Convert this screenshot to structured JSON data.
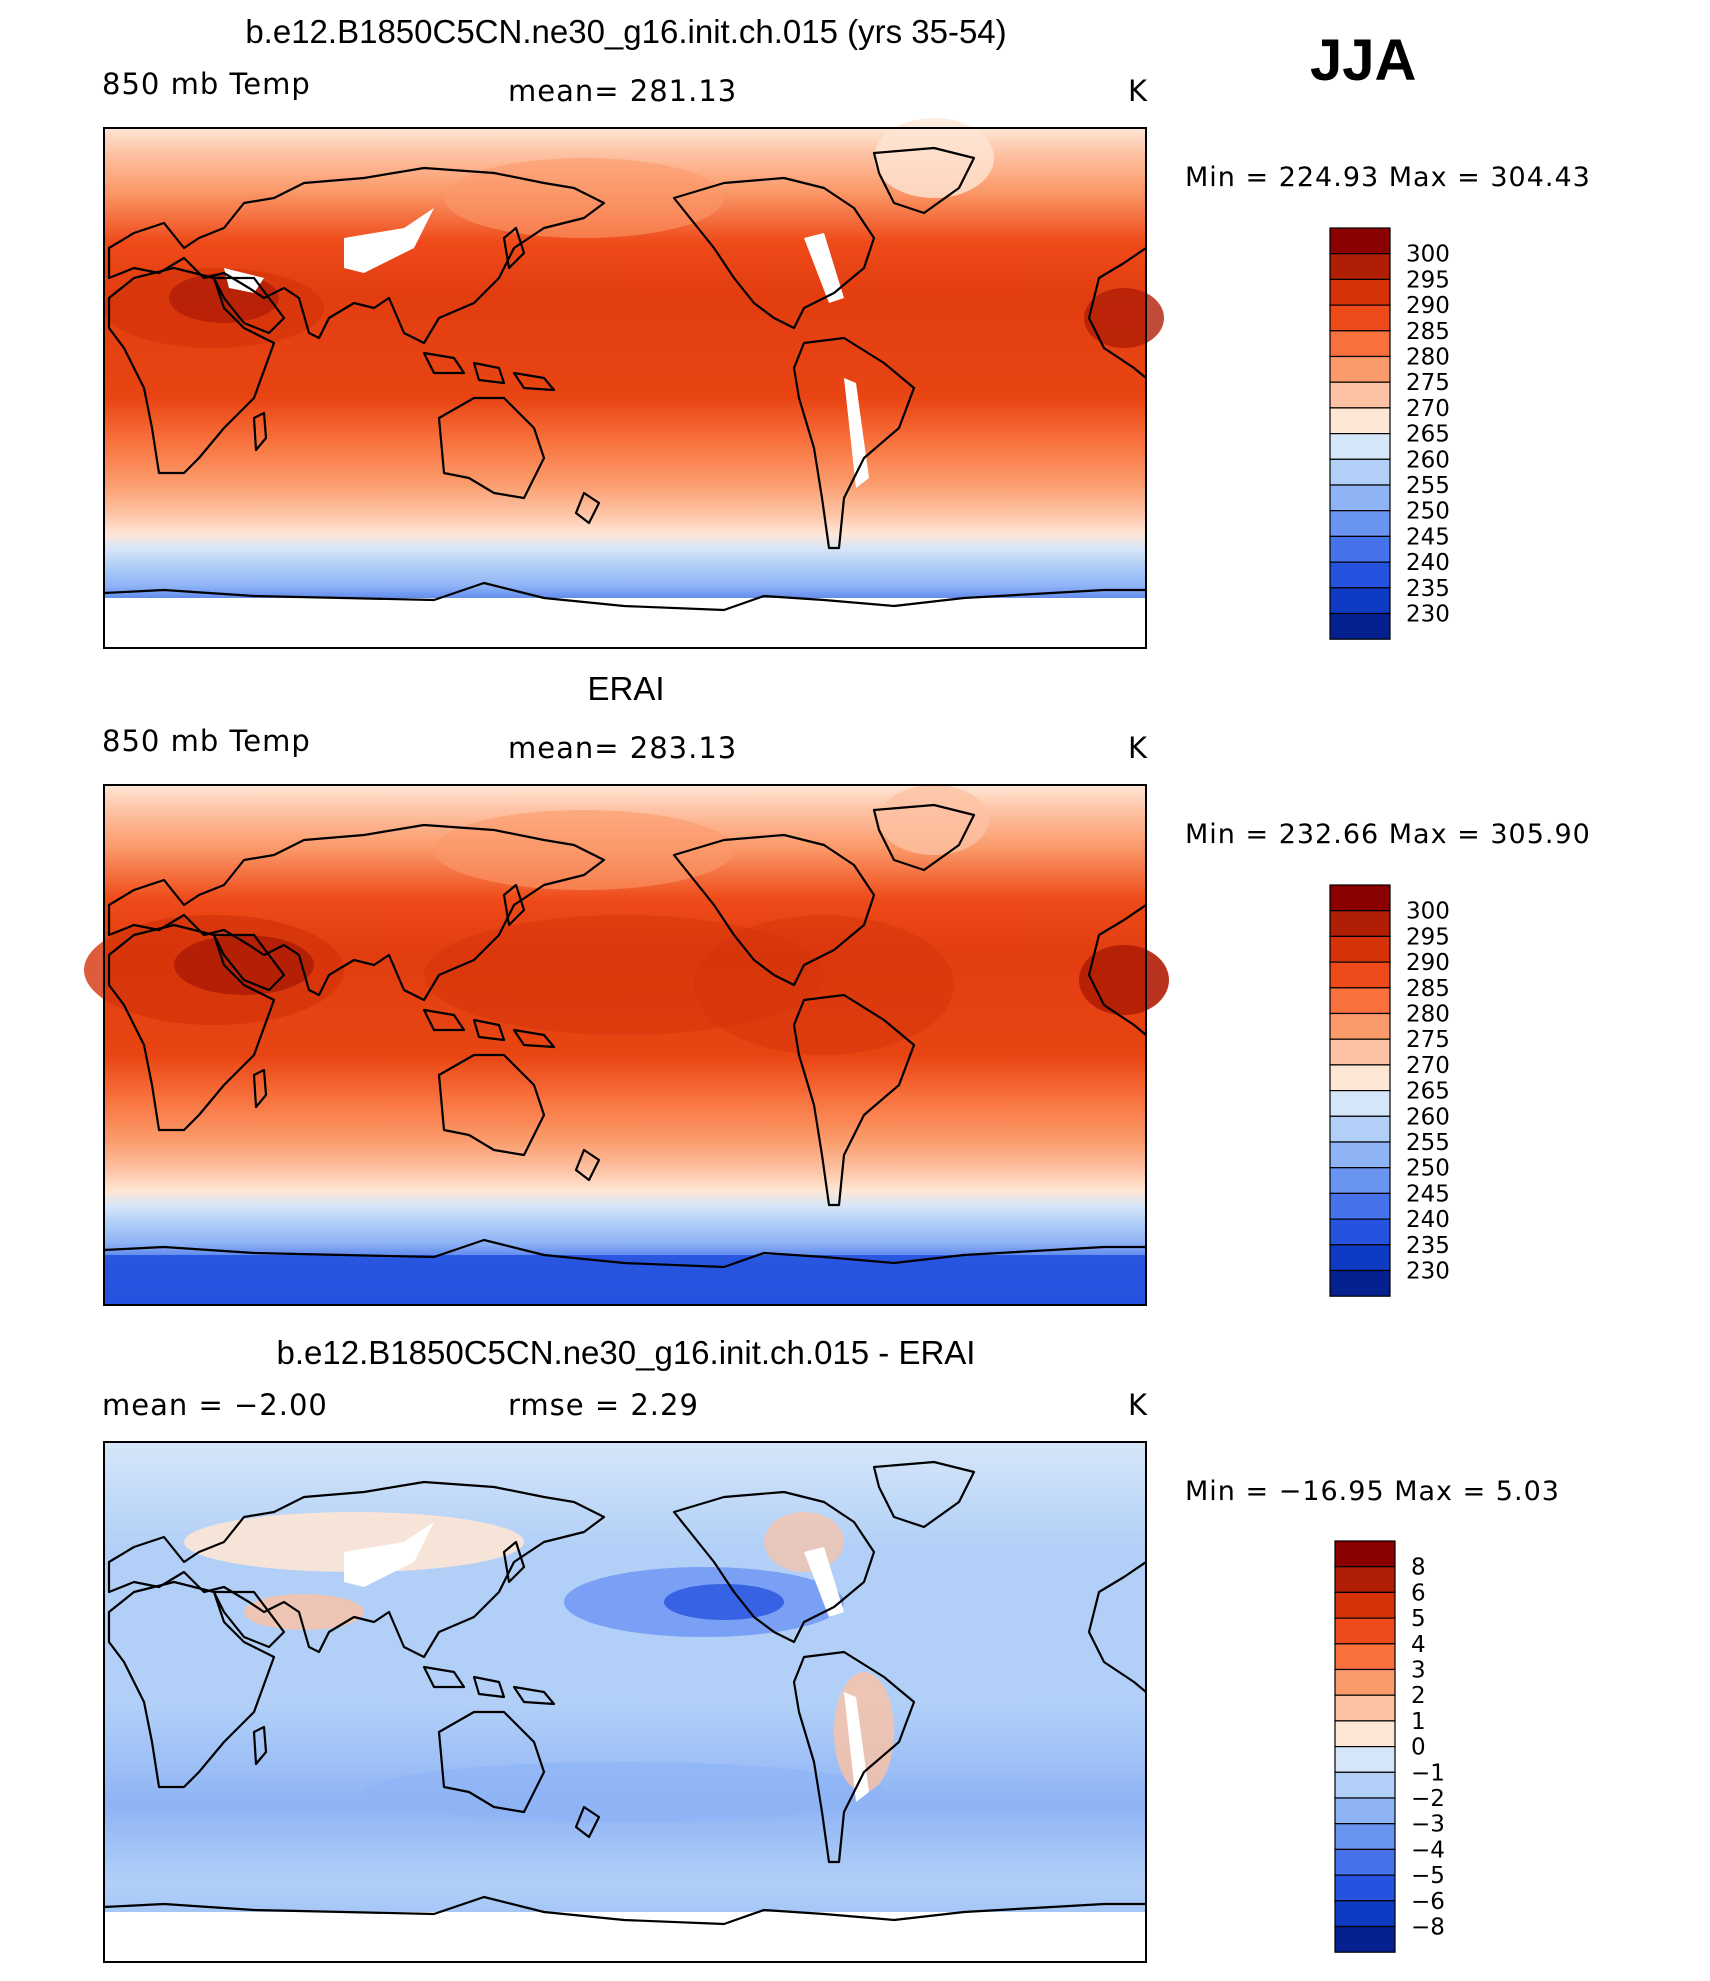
{
  "season": "JJA",
  "panels": [
    {
      "title": "b.e12.B1850C5CN.ne30_g16.init.ch.015 (yrs 35-54)",
      "left_label": "850 mb Temp",
      "center_label": "mean=  281.13",
      "units": "K",
      "minmax": "Min  =  224.93  Max  =  304.43",
      "field_type": "absolute"
    },
    {
      "title": "ERAI",
      "left_label": "850 mb Temp",
      "center_label": "mean=  283.13",
      "units": "K",
      "minmax": "Min  =  232.66  Max  =  305.90",
      "field_type": "absolute"
    },
    {
      "title": "b.e12.B1850C5CN.ne30_g16.init.ch.015 - ERAI",
      "left_label": "mean  =     −2.00",
      "center_label": "rmse  =      2.29",
      "units": "K",
      "minmax": "Min  =  −16.95  Max  =      5.03",
      "field_type": "difference"
    }
  ],
  "colorbars": {
    "absolute": {
      "labels": [
        "300",
        "295",
        "290",
        "285",
        "280",
        "275",
        "270",
        "265",
        "260",
        "255",
        "250",
        "245",
        "240",
        "235",
        "230"
      ],
      "colors": [
        "#8b0000",
        "#b01e06",
        "#d4330a",
        "#ef4a19",
        "#f8703c",
        "#fb9a6a",
        "#fdc2a3",
        "#fee6d5",
        "#d5e6f8",
        "#b2d0f7",
        "#8fb4f6",
        "#6a94f2",
        "#4672ea",
        "#2552de",
        "#0f3bc4",
        "#05218f"
      ]
    },
    "difference": {
      "labels": [
        "8",
        "6",
        "5",
        "4",
        "3",
        "2",
        "1",
        "0",
        "−1",
        "−2",
        "−3",
        "−4",
        "−5",
        "−6",
        "−8"
      ],
      "colors": [
        "#8b0000",
        "#b01e06",
        "#d4330a",
        "#ef4a19",
        "#f8703c",
        "#fb9a6a",
        "#fdc2a3",
        "#fee6d5",
        "#d5e6f8",
        "#b2d0f7",
        "#8fb4f6",
        "#6a94f2",
        "#4672ea",
        "#2552de",
        "#0f3bc4",
        "#05218f"
      ]
    }
  }
}
